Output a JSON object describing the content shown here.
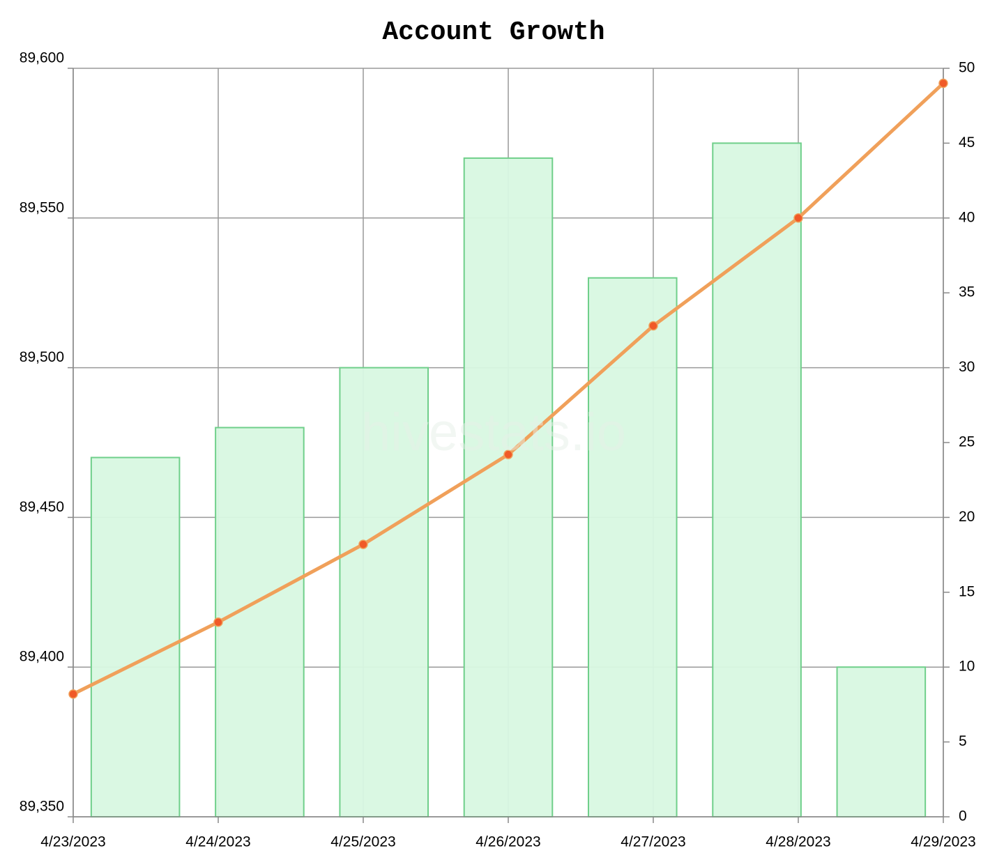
{
  "chart_data": {
    "type": "combo",
    "title": "Account Growth",
    "watermark": "hivestats.io",
    "x": [
      "4/23/2023",
      "4/24/2023",
      "4/25/2023",
      "4/26/2023",
      "4/27/2023",
      "4/28/2023",
      "4/29/2023"
    ],
    "series": [
      {
        "type": "bar",
        "axis": "y2",
        "color": "#d8f8e2",
        "stroke": "#6fcf8a",
        "values": [
          24,
          26,
          30,
          44,
          36,
          45,
          10
        ]
      },
      {
        "type": "line",
        "axis": "y",
        "color": "#f0a05a",
        "marker_color": "#f05a28",
        "values": [
          89391,
          89415,
          89441,
          89471,
          89514,
          89550,
          89595
        ]
      }
    ],
    "ylim": [
      89350,
      89600
    ],
    "yticks": [
      {
        "value": 89350,
        "label": "89,350"
      },
      {
        "value": 89400,
        "label": "89,400"
      },
      {
        "value": 89450,
        "label": "89,450"
      },
      {
        "value": 89500,
        "label": "89,500"
      },
      {
        "value": 89550,
        "label": "89,550"
      },
      {
        "value": 89600,
        "label": "89,600"
      }
    ],
    "y2lim": [
      0,
      50
    ],
    "y2ticks": [
      0,
      5,
      10,
      15,
      20,
      25,
      30,
      35,
      40,
      45,
      50
    ],
    "grid": true
  }
}
